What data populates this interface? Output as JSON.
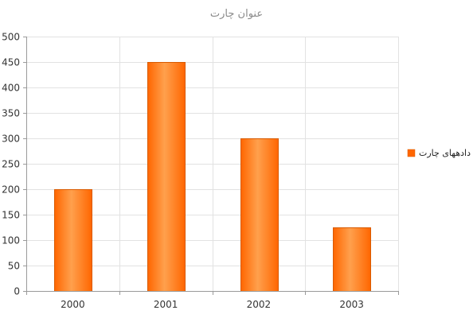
{
  "chart_data": {
    "type": "bar",
    "title": "عنوان چارت",
    "categories": [
      "2000",
      "2001",
      "2002",
      "2003"
    ],
    "series": [
      {
        "name": "دادههای چارت",
        "values": [
          200,
          450,
          300,
          125
        ]
      }
    ],
    "xlabel": "",
    "ylabel": "",
    "ylim": [
      0,
      500
    ],
    "yticks": [
      0,
      50,
      100,
      150,
      200,
      250,
      300,
      350,
      400,
      450,
      500
    ],
    "grid": true,
    "legend_position": "right",
    "colors": {
      "bar_dark": "#ff6600",
      "bar_light": "#ffa04d",
      "bar_stroke": "#d85a00",
      "grid": "#e2e2e2",
      "axis": "#9a9a9a"
    }
  }
}
